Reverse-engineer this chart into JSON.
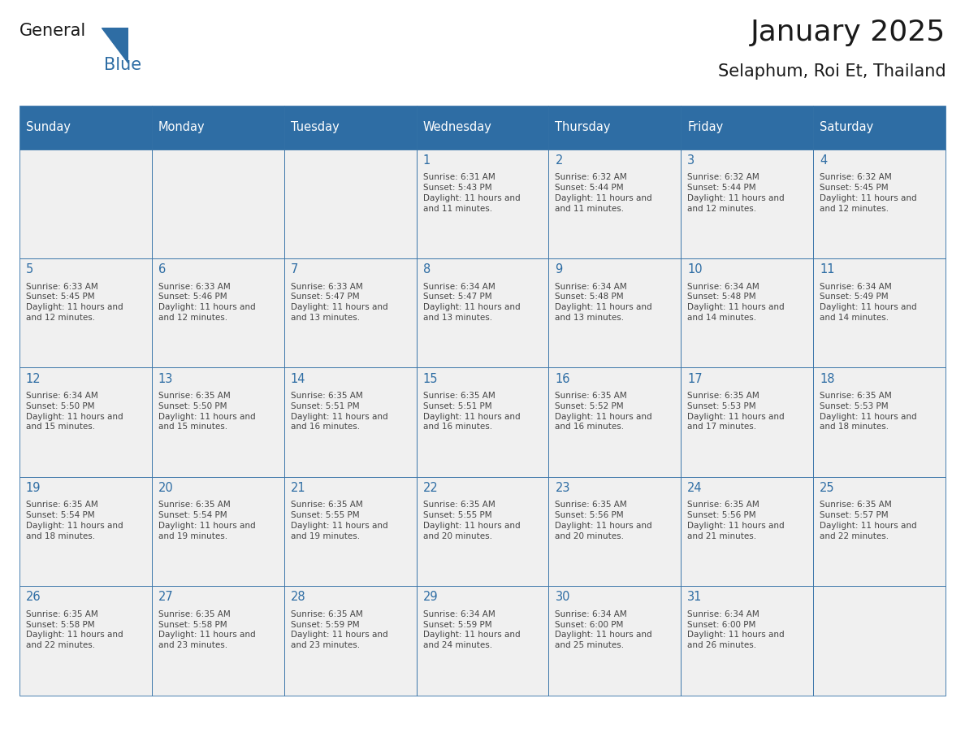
{
  "title": "January 2025",
  "subtitle": "Selaphum, Roi Et, Thailand",
  "days_of_week": [
    "Sunday",
    "Monday",
    "Tuesday",
    "Wednesday",
    "Thursday",
    "Friday",
    "Saturday"
  ],
  "header_bg": "#2E6DA4",
  "header_text": "#FFFFFF",
  "cell_bg": "#F0F0F0",
  "border_color": "#2E6DA4",
  "day_num_color": "#2E6DA4",
  "text_color": "#444444",
  "title_color": "#1a1a1a",
  "logo_blue": "#2E6DA4",
  "calendar_data": [
    [
      {
        "day": 0,
        "sunrise": "",
        "sunset": "",
        "daylight": ""
      },
      {
        "day": 0,
        "sunrise": "",
        "sunset": "",
        "daylight": ""
      },
      {
        "day": 0,
        "sunrise": "",
        "sunset": "",
        "daylight": ""
      },
      {
        "day": 1,
        "sunrise": "6:31 AM",
        "sunset": "5:43 PM",
        "daylight": "11 hours and 11 minutes."
      },
      {
        "day": 2,
        "sunrise": "6:32 AM",
        "sunset": "5:44 PM",
        "daylight": "11 hours and 11 minutes."
      },
      {
        "day": 3,
        "sunrise": "6:32 AM",
        "sunset": "5:44 PM",
        "daylight": "11 hours and 12 minutes."
      },
      {
        "day": 4,
        "sunrise": "6:32 AM",
        "sunset": "5:45 PM",
        "daylight": "11 hours and 12 minutes."
      }
    ],
    [
      {
        "day": 5,
        "sunrise": "6:33 AM",
        "sunset": "5:45 PM",
        "daylight": "11 hours and 12 minutes."
      },
      {
        "day": 6,
        "sunrise": "6:33 AM",
        "sunset": "5:46 PM",
        "daylight": "11 hours and 12 minutes."
      },
      {
        "day": 7,
        "sunrise": "6:33 AM",
        "sunset": "5:47 PM",
        "daylight": "11 hours and 13 minutes."
      },
      {
        "day": 8,
        "sunrise": "6:34 AM",
        "sunset": "5:47 PM",
        "daylight": "11 hours and 13 minutes."
      },
      {
        "day": 9,
        "sunrise": "6:34 AM",
        "sunset": "5:48 PM",
        "daylight": "11 hours and 13 minutes."
      },
      {
        "day": 10,
        "sunrise": "6:34 AM",
        "sunset": "5:48 PM",
        "daylight": "11 hours and 14 minutes."
      },
      {
        "day": 11,
        "sunrise": "6:34 AM",
        "sunset": "5:49 PM",
        "daylight": "11 hours and 14 minutes."
      }
    ],
    [
      {
        "day": 12,
        "sunrise": "6:34 AM",
        "sunset": "5:50 PM",
        "daylight": "11 hours and 15 minutes."
      },
      {
        "day": 13,
        "sunrise": "6:35 AM",
        "sunset": "5:50 PM",
        "daylight": "11 hours and 15 minutes."
      },
      {
        "day": 14,
        "sunrise": "6:35 AM",
        "sunset": "5:51 PM",
        "daylight": "11 hours and 16 minutes."
      },
      {
        "day": 15,
        "sunrise": "6:35 AM",
        "sunset": "5:51 PM",
        "daylight": "11 hours and 16 minutes."
      },
      {
        "day": 16,
        "sunrise": "6:35 AM",
        "sunset": "5:52 PM",
        "daylight": "11 hours and 16 minutes."
      },
      {
        "day": 17,
        "sunrise": "6:35 AM",
        "sunset": "5:53 PM",
        "daylight": "11 hours and 17 minutes."
      },
      {
        "day": 18,
        "sunrise": "6:35 AM",
        "sunset": "5:53 PM",
        "daylight": "11 hours and 18 minutes."
      }
    ],
    [
      {
        "day": 19,
        "sunrise": "6:35 AM",
        "sunset": "5:54 PM",
        "daylight": "11 hours and 18 minutes."
      },
      {
        "day": 20,
        "sunrise": "6:35 AM",
        "sunset": "5:54 PM",
        "daylight": "11 hours and 19 minutes."
      },
      {
        "day": 21,
        "sunrise": "6:35 AM",
        "sunset": "5:55 PM",
        "daylight": "11 hours and 19 minutes."
      },
      {
        "day": 22,
        "sunrise": "6:35 AM",
        "sunset": "5:55 PM",
        "daylight": "11 hours and 20 minutes."
      },
      {
        "day": 23,
        "sunrise": "6:35 AM",
        "sunset": "5:56 PM",
        "daylight": "11 hours and 20 minutes."
      },
      {
        "day": 24,
        "sunrise": "6:35 AM",
        "sunset": "5:56 PM",
        "daylight": "11 hours and 21 minutes."
      },
      {
        "day": 25,
        "sunrise": "6:35 AM",
        "sunset": "5:57 PM",
        "daylight": "11 hours and 22 minutes."
      }
    ],
    [
      {
        "day": 26,
        "sunrise": "6:35 AM",
        "sunset": "5:58 PM",
        "daylight": "11 hours and 22 minutes."
      },
      {
        "day": 27,
        "sunrise": "6:35 AM",
        "sunset": "5:58 PM",
        "daylight": "11 hours and 23 minutes."
      },
      {
        "day": 28,
        "sunrise": "6:35 AM",
        "sunset": "5:59 PM",
        "daylight": "11 hours and 23 minutes."
      },
      {
        "day": 29,
        "sunrise": "6:34 AM",
        "sunset": "5:59 PM",
        "daylight": "11 hours and 24 minutes."
      },
      {
        "day": 30,
        "sunrise": "6:34 AM",
        "sunset": "6:00 PM",
        "daylight": "11 hours and 25 minutes."
      },
      {
        "day": 31,
        "sunrise": "6:34 AM",
        "sunset": "6:00 PM",
        "daylight": "11 hours and 26 minutes."
      },
      {
        "day": 0,
        "sunrise": "",
        "sunset": "",
        "daylight": ""
      }
    ]
  ]
}
